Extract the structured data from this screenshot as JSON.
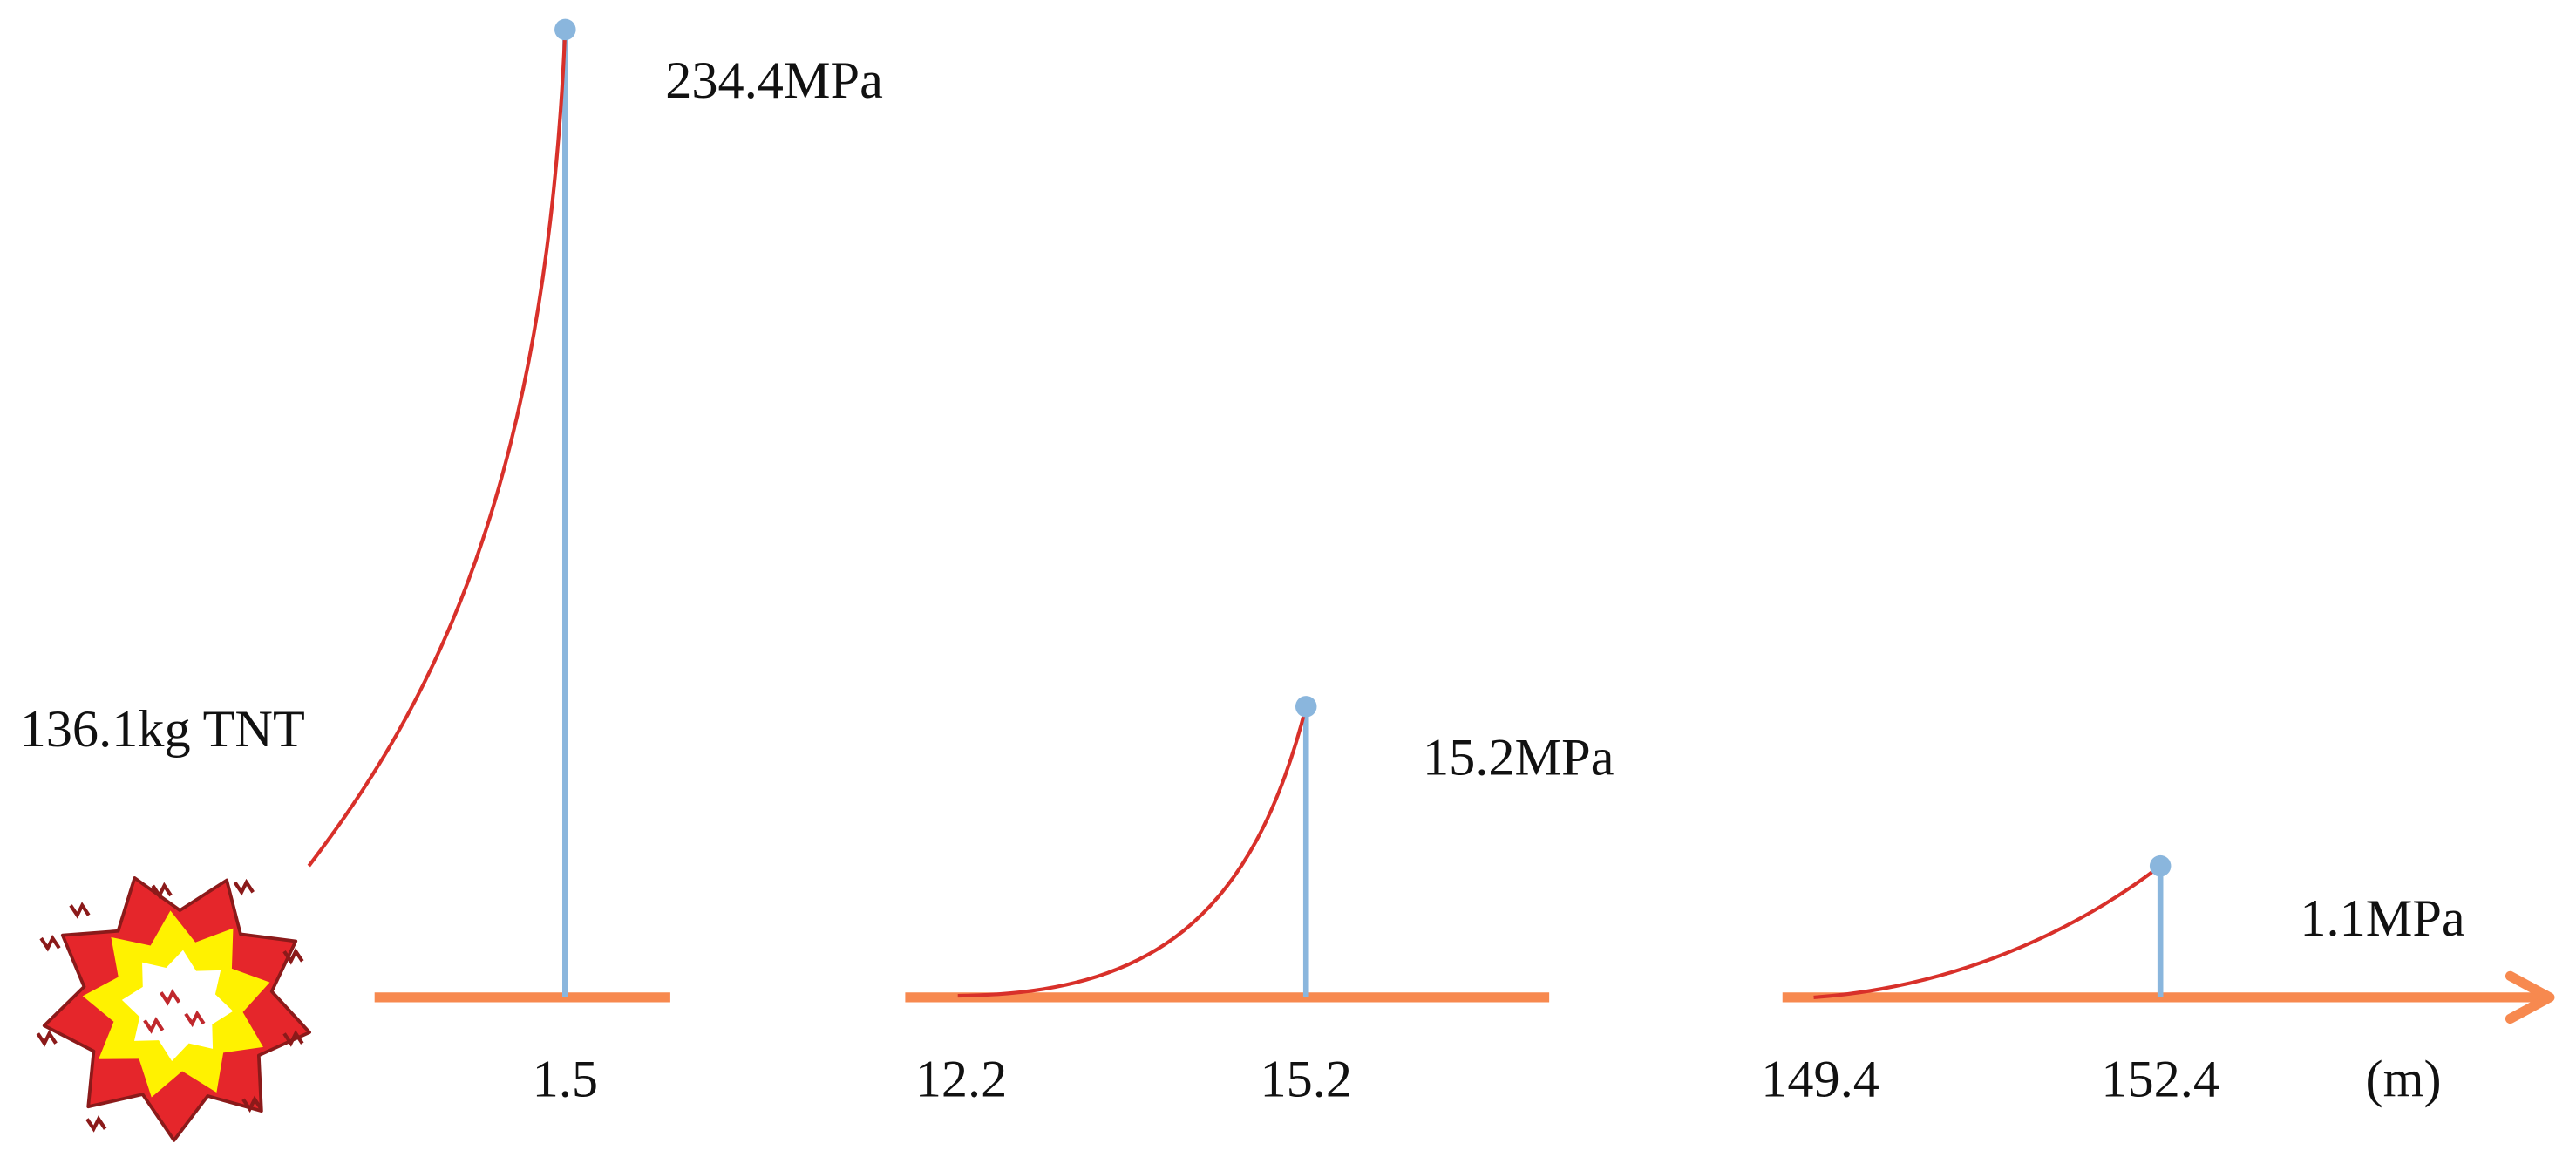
{
  "explosive": {
    "label": "136.1kg TNT"
  },
  "peaks": [
    {
      "pressure": "234.4MPa",
      "distance": "1.5"
    },
    {
      "pressure": "15.2MPa",
      "start": "12.2",
      "distance": "15.2"
    },
    {
      "pressure": "1.1MPa",
      "start": "149.4",
      "distance": "152.4"
    }
  ],
  "unit": "(m)"
}
